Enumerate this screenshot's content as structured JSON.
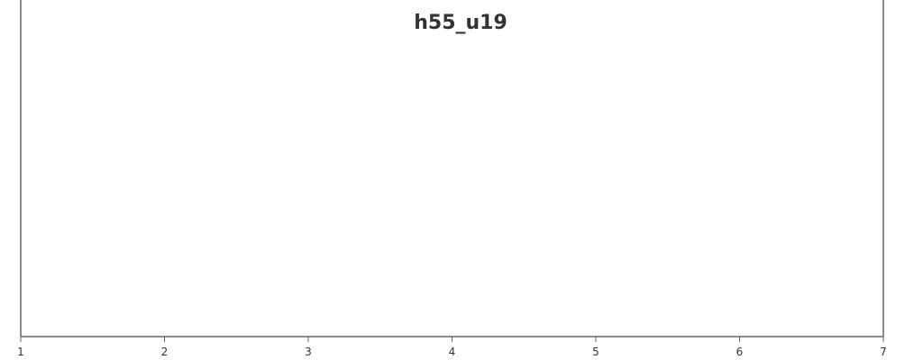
{
  "chart_data": {
    "type": "line",
    "title": "h55_u19",
    "xlabel": "",
    "ylabel": "",
    "x_ticks": [
      1,
      2,
      3,
      4,
      5,
      6,
      7
    ],
    "xlim": [
      1,
      7
    ],
    "series": [],
    "grid": false,
    "legend": "none"
  },
  "colors": {
    "axis": "#666666",
    "text": "#333333",
    "background": "#ffffff"
  }
}
